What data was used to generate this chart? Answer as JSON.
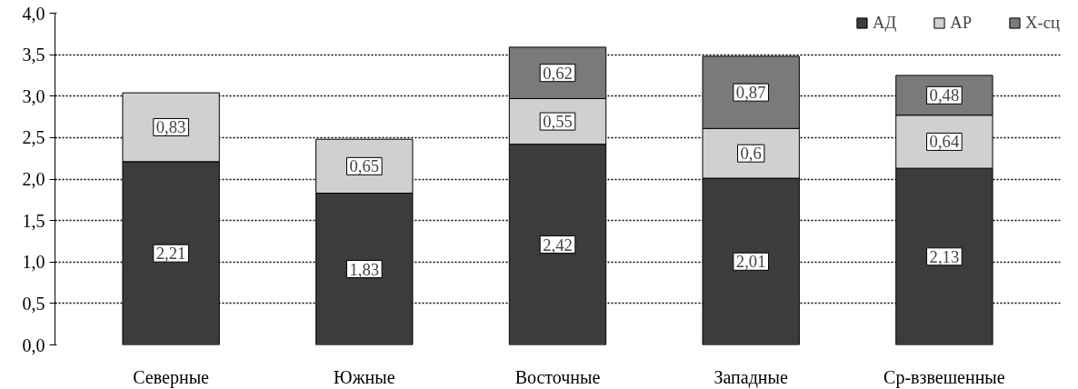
{
  "chart_data": {
    "type": "bar",
    "stacked": true,
    "categories": [
      "Северные",
      "Южные",
      "Восточные",
      "Западные",
      "Ср-взвешенные"
    ],
    "series": [
      {
        "name": "АД",
        "color": "#3c3c3c",
        "values": [
          2.21,
          1.83,
          2.42,
          2.01,
          2.13
        ],
        "value_labels": [
          "2,21",
          "1,83",
          "2,42",
          "2,01",
          "2,13"
        ]
      },
      {
        "name": "АР",
        "color": "#d0d0d0",
        "values": [
          0.83,
          0.65,
          0.55,
          0.6,
          0.64
        ],
        "value_labels": [
          "0,83",
          "0,65",
          "0,55",
          "0,6",
          "0,64"
        ]
      },
      {
        "name": "Х-сц",
        "color": "#7a7a7a",
        "values": [
          null,
          null,
          0.62,
          0.87,
          0.48
        ],
        "value_labels": [
          null,
          null,
          "0,62",
          "0,87",
          "0,48"
        ]
      }
    ],
    "ylim": [
      0,
      4
    ],
    "yticks": [
      {
        "value": 0,
        "label": "0,0"
      },
      {
        "value": 0.5,
        "label": "0,5"
      },
      {
        "value": 1,
        "label": "1,0"
      },
      {
        "value": 1.5,
        "label": "1,5"
      },
      {
        "value": 2,
        "label": "2,0"
      },
      {
        "value": 2.5,
        "label": "2,5"
      },
      {
        "value": 3,
        "label": "3,0"
      },
      {
        "value": 3.5,
        "label": "3,5"
      },
      {
        "value": 4,
        "label": "4,0"
      }
    ],
    "grid": "y",
    "legend": "top right"
  }
}
